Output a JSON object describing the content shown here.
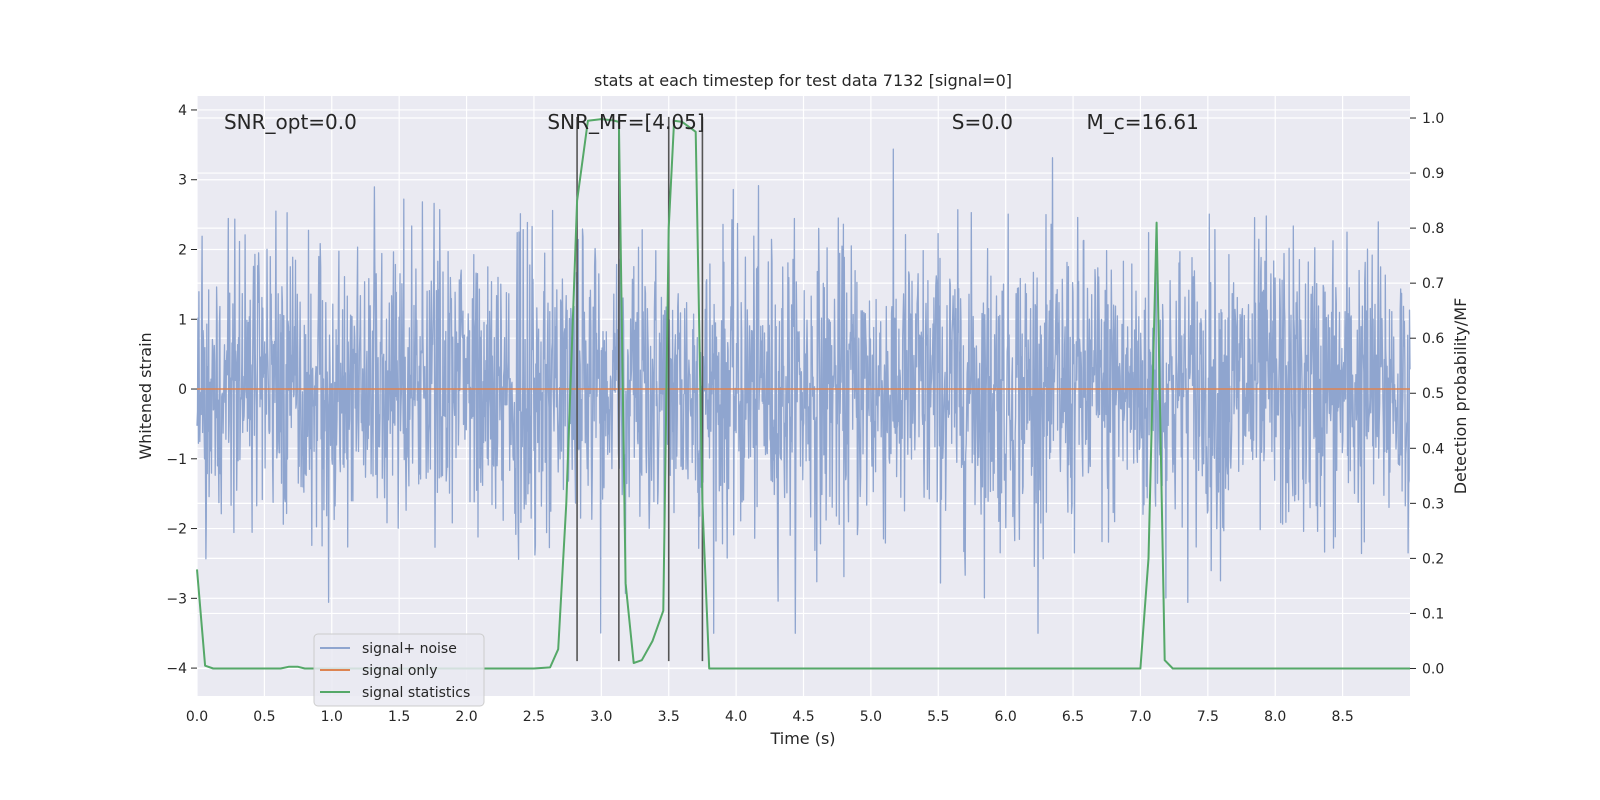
{
  "chart_data": {
    "type": "line",
    "title": "stats at each timestep for test data 7132 [signal=0]",
    "xlabel": "Time (s)",
    "ylabel": "Whitened strain",
    "ylabel_right": "Detection probability/MF",
    "xlim": [
      0.0,
      9.0
    ],
    "ylim": [
      -4.4,
      4.2
    ],
    "ylim_right": [
      -0.05,
      1.04
    ],
    "x_ticks": [
      "0.0",
      "0.5",
      "1.0",
      "1.5",
      "2.0",
      "2.5",
      "3.0",
      "3.5",
      "4.0",
      "4.5",
      "5.0",
      "5.5",
      "6.0",
      "6.5",
      "7.0",
      "7.5",
      "8.0",
      "8.5"
    ],
    "y_ticks": [
      "4",
      "3",
      "2",
      "1",
      "0",
      "−1",
      "−2",
      "−3",
      "−4"
    ],
    "y_ticks_right": [
      "1.0",
      "0.9",
      "0.8",
      "0.7",
      "0.6",
      "0.5",
      "0.4",
      "0.3",
      "0.2",
      "0.1",
      "0.0"
    ],
    "grid": true,
    "legend_position": "lower-left",
    "series": [
      {
        "name": "signal+ noise",
        "axis": "left",
        "color": "#8fa5cf",
        "summary": "dense Gaussian-like noise trace, roughly between -3.5 and 3.7"
      },
      {
        "name": "signal only",
        "axis": "left",
        "color": "#dd8452",
        "x": [
          0.0,
          9.0
        ],
        "y": [
          0.0,
          0.0
        ]
      },
      {
        "name": "signal statistics",
        "axis": "right",
        "color": "#55a868",
        "x": [
          0.0,
          0.06,
          0.12,
          0.3,
          0.5,
          0.62,
          0.68,
          0.75,
          0.8,
          1.0,
          1.5,
          2.0,
          2.5,
          2.62,
          2.68,
          2.74,
          2.82,
          2.9,
          3.0,
          3.08,
          3.13,
          3.18,
          3.24,
          3.3,
          3.38,
          3.46,
          3.5,
          3.54,
          3.6,
          3.7,
          3.75,
          3.8,
          3.9,
          4.0,
          4.5,
          5.0,
          5.5,
          6.0,
          6.5,
          7.0,
          7.06,
          7.12,
          7.18,
          7.24,
          7.5,
          8.0,
          8.5,
          9.0
        ],
        "y": [
          0.18,
          0.005,
          0.0,
          0.0,
          0.0,
          0.0,
          0.003,
          0.003,
          0.0,
          0.0,
          0.0,
          0.0,
          0.0,
          0.002,
          0.035,
          0.3,
          0.85,
          0.995,
          0.998,
          0.996,
          0.993,
          0.155,
          0.01,
          0.015,
          0.05,
          0.105,
          0.8,
          0.995,
          0.993,
          0.975,
          0.3,
          0.0,
          0.0,
          0.0,
          0.0,
          0.0,
          0.0,
          0.0,
          0.0,
          0.0,
          0.2,
          0.81,
          0.015,
          0.0,
          0.0,
          0.0,
          0.0,
          0.0
        ]
      }
    ],
    "vertical_lines": {
      "color": "#555555",
      "x": [
        2.82,
        3.13,
        3.5,
        3.75
      ],
      "y_range": [
        -3.9,
        3.9
      ]
    },
    "annotations": [
      {
        "name": "snr-opt",
        "text": "SNR_opt=0.0",
        "x": 0.2,
        "y": 3.83
      },
      {
        "name": "snr-mf",
        "text": "SNR_MF=[4.05]",
        "x": 2.6,
        "y": 3.83
      },
      {
        "name": "s-value",
        "text": "S=0.0",
        "x": 5.6,
        "y": 3.83
      },
      {
        "name": "chirp-mass",
        "text": "M_c=16.61",
        "x": 6.6,
        "y": 3.83
      }
    ]
  }
}
